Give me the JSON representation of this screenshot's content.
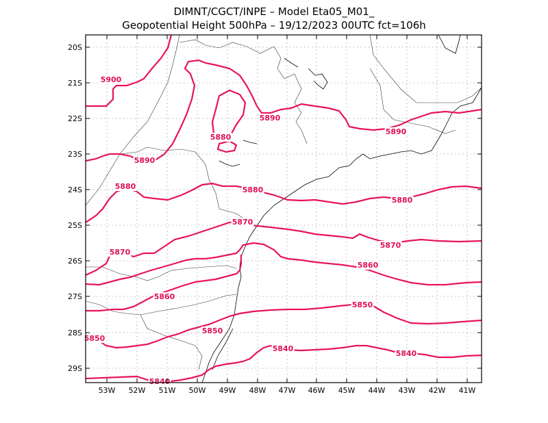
{
  "title": {
    "line1": "DIMNT/CGCT/INPE  –   Model Eta05_M01_",
    "line2": "Geopotential Height 500hPa  –   19/12/2023 00UTC fct=106h"
  },
  "axes": {
    "lat_labels": [
      "20S",
      "21S",
      "22S",
      "23S",
      "24S",
      "25S",
      "26S",
      "27S",
      "28S",
      "29S"
    ],
    "lon_labels": [
      "53W",
      "52W",
      "51W",
      "50W",
      "49W",
      "48W",
      "47W",
      "46W",
      "45W",
      "44W",
      "43W",
      "42W",
      "41W"
    ]
  },
  "contour_labels": [
    {
      "id": "l5900",
      "text": "5900"
    },
    {
      "id": "l5890a",
      "text": "5890"
    },
    {
      "id": "l5890b",
      "text": "5890"
    },
    {
      "id": "l5890c",
      "text": "5890"
    },
    {
      "id": "l5880a",
      "text": "5880"
    },
    {
      "id": "l5880b",
      "text": "5880"
    },
    {
      "id": "l5880c",
      "text": "5880"
    },
    {
      "id": "l5880d",
      "text": "5880"
    },
    {
      "id": "l5870a",
      "text": "5870"
    },
    {
      "id": "l5870b",
      "text": "5870"
    },
    {
      "id": "l5870c",
      "text": "5870"
    },
    {
      "id": "l5860a",
      "text": "5860"
    },
    {
      "id": "l5860b",
      "text": "5860"
    },
    {
      "id": "l5850a",
      "text": "5850"
    },
    {
      "id": "l5850b",
      "text": "5850"
    },
    {
      "id": "l5850c",
      "text": "5850"
    },
    {
      "id": "l5840a",
      "text": "5840"
    },
    {
      "id": "l5840b",
      "text": "5840"
    },
    {
      "id": "l5840c",
      "text": "5840"
    }
  ],
  "colors": {
    "contour": "#e8125c",
    "label": "#e0105a",
    "frame": "#000000",
    "grid": "#9a9a9a"
  }
}
